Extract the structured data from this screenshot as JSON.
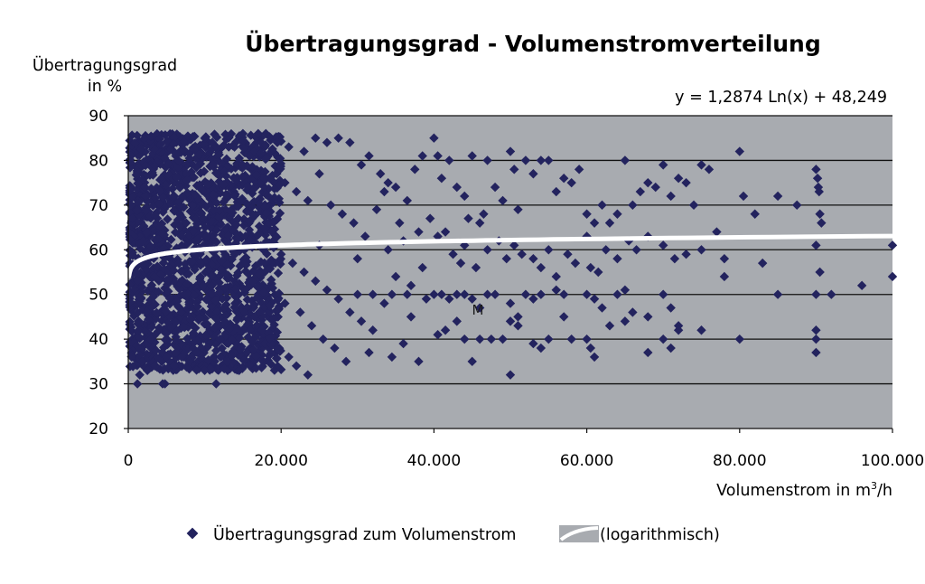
{
  "chart_data": {
    "type": "scatter",
    "title": "Übertragungsgrad - Volumenstromverteilung",
    "ylabel_line1": "Übertragungsgrad",
    "ylabel_line2": "in %",
    "xlabel_text": "Volumenstrom in m",
    "xlabel_sup": "3",
    "xlabel_end": "/h",
    "equation": "y = 1,2874 Ln(x) + 48,249",
    "annotation": "M",
    "xlim": [
      0,
      100000
    ],
    "ylim": [
      20,
      90
    ],
    "x_ticks": [
      0,
      20000,
      40000,
      60000,
      80000,
      100000
    ],
    "x_tick_labels": [
      "0",
      "20.000",
      "40.000",
      "60.000",
      "80.000",
      "100.000"
    ],
    "y_ticks": [
      20,
      30,
      40,
      50,
      60,
      70,
      80,
      90
    ],
    "y_tick_labels": [
      "20",
      "30",
      "40",
      "50",
      "60",
      "70",
      "80",
      "90"
    ],
    "grid_y": true,
    "legend_position": "bottom",
    "colors": {
      "plot_bg": "#a8abb0",
      "marker": "#23235e",
      "trend": "#ffffff",
      "grid": "#111111"
    },
    "series": [
      {
        "name": "Übertragungsgrad zum Volumenstrom",
        "marker": "diamond",
        "points": [
          [
            15000,
            86
          ],
          [
            17000,
            86
          ],
          [
            18000,
            86
          ],
          [
            19500,
            84
          ],
          [
            21000,
            83
          ],
          [
            23000,
            82
          ],
          [
            24500,
            85
          ],
          [
            26000,
            84
          ],
          [
            27500,
            85
          ],
          [
            29000,
            84
          ],
          [
            30500,
            79
          ],
          [
            31500,
            81
          ],
          [
            33000,
            77
          ],
          [
            34000,
            75
          ],
          [
            35000,
            74
          ],
          [
            36500,
            71
          ],
          [
            37500,
            78
          ],
          [
            38500,
            81
          ],
          [
            20500,
            75
          ],
          [
            22000,
            73
          ],
          [
            23500,
            71
          ],
          [
            25000,
            77
          ],
          [
            26500,
            70
          ],
          [
            28000,
            68
          ],
          [
            29500,
            66
          ],
          [
            31000,
            63
          ],
          [
            32500,
            69
          ],
          [
            33500,
            73
          ],
          [
            35500,
            66
          ],
          [
            36000,
            62
          ],
          [
            38000,
            64
          ],
          [
            39500,
            67
          ],
          [
            20000,
            59
          ],
          [
            21500,
            57
          ],
          [
            23000,
            55
          ],
          [
            24500,
            53
          ],
          [
            26000,
            51
          ],
          [
            27500,
            49
          ],
          [
            29000,
            46
          ],
          [
            30500,
            44
          ],
          [
            32000,
            42
          ],
          [
            33500,
            48
          ],
          [
            35000,
            54
          ],
          [
            37000,
            52
          ],
          [
            38500,
            56
          ],
          [
            22500,
            46
          ],
          [
            24000,
            43
          ],
          [
            25500,
            40
          ],
          [
            27000,
            38
          ],
          [
            28500,
            35
          ],
          [
            19500,
            38
          ],
          [
            21000,
            36
          ],
          [
            22000,
            34
          ],
          [
            23500,
            32
          ],
          [
            20500,
            48
          ],
          [
            25000,
            61
          ],
          [
            30000,
            58
          ],
          [
            34000,
            60
          ],
          [
            37000,
            45
          ],
          [
            38000,
            35
          ],
          [
            30000,
            50
          ],
          [
            32000,
            50
          ],
          [
            34500,
            50
          ],
          [
            36500,
            50
          ],
          [
            39000,
            49
          ],
          [
            31500,
            37
          ],
          [
            34500,
            36
          ],
          [
            36000,
            39
          ],
          [
            17500,
            42
          ],
          [
            16500,
            45
          ],
          [
            15500,
            37
          ],
          [
            14500,
            33
          ],
          [
            13000,
            33
          ],
          [
            12000,
            40
          ],
          [
            11500,
            30
          ],
          [
            10000,
            33
          ],
          [
            9000,
            37
          ],
          [
            8000,
            35
          ],
          [
            7000,
            36
          ],
          [
            6000,
            34
          ],
          [
            5000,
            36
          ],
          [
            4500,
            30
          ],
          [
            4800,
            30
          ],
          [
            3500,
            34
          ],
          [
            2500,
            33
          ],
          [
            1800,
            35
          ],
          [
            1500,
            32
          ],
          [
            1200,
            30
          ],
          [
            40000,
            85
          ],
          [
            40500,
            81
          ],
          [
            41000,
            76
          ],
          [
            42000,
            80
          ],
          [
            43000,
            74
          ],
          [
            44000,
            72
          ],
          [
            44500,
            67
          ],
          [
            45000,
            81
          ],
          [
            46000,
            66
          ],
          [
            46500,
            68
          ],
          [
            47000,
            80
          ],
          [
            48000,
            74
          ],
          [
            49000,
            71
          ],
          [
            50000,
            82
          ],
          [
            50500,
            78
          ],
          [
            51000,
            69
          ],
          [
            52000,
            80
          ],
          [
            53000,
            77
          ],
          [
            54000,
            80
          ],
          [
            55000,
            80
          ],
          [
            56000,
            73
          ],
          [
            57000,
            76
          ],
          [
            58000,
            75
          ],
          [
            59000,
            78
          ],
          [
            60000,
            68
          ],
          [
            61000,
            66
          ],
          [
            62000,
            70
          ],
          [
            63000,
            66
          ],
          [
            64000,
            68
          ],
          [
            65000,
            80
          ],
          [
            66000,
            70
          ],
          [
            67000,
            73
          ],
          [
            68000,
            75
          ],
          [
            69000,
            74
          ],
          [
            70000,
            79
          ],
          [
            71000,
            72
          ],
          [
            72000,
            76
          ],
          [
            73000,
            75
          ],
          [
            74000,
            70
          ],
          [
            75000,
            79
          ],
          [
            76000,
            78
          ],
          [
            77000,
            64
          ],
          [
            80000,
            82
          ],
          [
            80500,
            72
          ],
          [
            82000,
            68
          ],
          [
            85000,
            72
          ],
          [
            87500,
            70
          ],
          [
            90000,
            78
          ],
          [
            90200,
            76
          ],
          [
            90300,
            74
          ],
          [
            90400,
            73
          ],
          [
            90500,
            68
          ],
          [
            90700,
            66
          ],
          [
            40500,
            63
          ],
          [
            41500,
            64
          ],
          [
            42500,
            59
          ],
          [
            43500,
            57
          ],
          [
            44000,
            61
          ],
          [
            45500,
            56
          ],
          [
            47000,
            60
          ],
          [
            48500,
            62
          ],
          [
            49500,
            58
          ],
          [
            50500,
            61
          ],
          [
            51500,
            59
          ],
          [
            53000,
            58
          ],
          [
            54000,
            56
          ],
          [
            55000,
            60
          ],
          [
            56000,
            54
          ],
          [
            57500,
            59
          ],
          [
            58500,
            57
          ],
          [
            60000,
            63
          ],
          [
            60500,
            56
          ],
          [
            61500,
            55
          ],
          [
            62500,
            60
          ],
          [
            64000,
            58
          ],
          [
            65500,
            62
          ],
          [
            66500,
            60
          ],
          [
            68000,
            63
          ],
          [
            70000,
            61
          ],
          [
            71500,
            58
          ],
          [
            73000,
            59
          ],
          [
            75000,
            60
          ],
          [
            78000,
            58
          ],
          [
            83000,
            57
          ],
          [
            90000,
            61
          ],
          [
            90500,
            55
          ],
          [
            100000,
            61
          ],
          [
            100000,
            54
          ],
          [
            78000,
            54
          ],
          [
            40000,
            50
          ],
          [
            41000,
            50
          ],
          [
            42000,
            49
          ],
          [
            43000,
            50
          ],
          [
            44000,
            50
          ],
          [
            45000,
            49
          ],
          [
            46000,
            47
          ],
          [
            47000,
            50
          ],
          [
            48000,
            50
          ],
          [
            50000,
            48
          ],
          [
            51000,
            45
          ],
          [
            52000,
            50
          ],
          [
            53000,
            49
          ],
          [
            54000,
            50
          ],
          [
            56000,
            51
          ],
          [
            57000,
            50
          ],
          [
            60000,
            50
          ],
          [
            61000,
            49
          ],
          [
            62000,
            47
          ],
          [
            64000,
            50
          ],
          [
            65000,
            51
          ],
          [
            68000,
            45
          ],
          [
            70000,
            50
          ],
          [
            71000,
            47
          ],
          [
            72000,
            43
          ],
          [
            75000,
            42
          ],
          [
            80000,
            40
          ],
          [
            85000,
            50
          ],
          [
            90000,
            50
          ],
          [
            92000,
            50
          ],
          [
            96000,
            52
          ],
          [
            40500,
            41
          ],
          [
            41500,
            42
          ],
          [
            43000,
            44
          ],
          [
            44000,
            40
          ],
          [
            45000,
            35
          ],
          [
            46000,
            40
          ],
          [
            47500,
            40
          ],
          [
            49000,
            40
          ],
          [
            50000,
            44
          ],
          [
            51000,
            43
          ],
          [
            53000,
            39
          ],
          [
            54000,
            38
          ],
          [
            55000,
            40
          ],
          [
            57000,
            45
          ],
          [
            58000,
            40
          ],
          [
            60000,
            40
          ],
          [
            60500,
            38
          ],
          [
            61000,
            36
          ],
          [
            63000,
            43
          ],
          [
            65000,
            44
          ],
          [
            66000,
            46
          ],
          [
            68000,
            37
          ],
          [
            70000,
            40
          ],
          [
            71000,
            38
          ],
          [
            72000,
            42
          ],
          [
            90000,
            42
          ],
          [
            90000,
            40
          ],
          [
            90000,
            37
          ],
          [
            50000,
            32
          ]
        ]
      },
      {
        "name": "(logarithmisch)",
        "type": "line",
        "formula": "y = 1.2874*ln(x) + 48.249",
        "x_from": 100,
        "x_to": 100000
      }
    ],
    "dense_cluster": {
      "description": "very dense cloud of points",
      "x_range": [
        0,
        20000
      ],
      "y_range": [
        33,
        86
      ],
      "count": 1700,
      "seed": 12345
    }
  }
}
